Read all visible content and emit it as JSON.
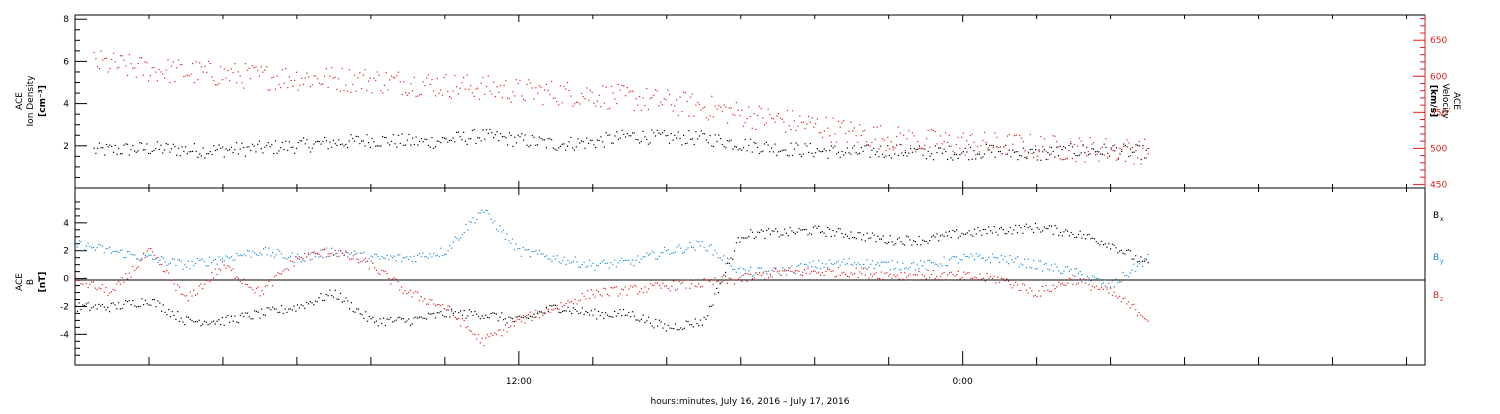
{
  "chart_data": [
    {
      "type": "scatter",
      "panel": "top",
      "ylabel_left": [
        "ACE",
        "Ion Density",
        "[cm⁻³]"
      ],
      "ylabel_right": [
        "ACE",
        "Velocity",
        "[km/s]"
      ],
      "ylim_left": [
        0,
        8.2
      ],
      "ylim_right": [
        445,
        685
      ],
      "yticks_left": [
        2,
        4,
        6,
        8
      ],
      "yticks_right": [
        450,
        500,
        550,
        600,
        650
      ],
      "series": [
        {
          "name": "",
          "axis": "left",
          "color": "#000000",
          "values_hr": [
            0.5,
            2,
            3.5,
            5,
            6.5,
            8,
            9.5,
            11,
            12,
            13,
            14,
            15,
            16,
            17,
            18,
            19,
            20,
            21,
            22,
            23,
            24,
            25,
            26,
            27,
            28,
            29
          ],
          "values": [
            1.8,
            1.9,
            1.8,
            1.9,
            2.1,
            2.3,
            2.2,
            2.5,
            2.3,
            2.1,
            2.2,
            2.5,
            2.4,
            2.4,
            2.1,
            1.9,
            1.8,
            1.7,
            1.8,
            1.7,
            1.7,
            1.8,
            1.6,
            1.8,
            1.8,
            1.7
          ]
        },
        {
          "name": "",
          "axis": "right",
          "color": "#e02020",
          "values_hr": [
            0.5,
            2,
            3.5,
            5,
            6.5,
            8,
            9.5,
            11,
            12,
            13,
            14,
            15,
            16,
            17,
            18,
            19,
            20,
            21,
            22,
            23,
            24,
            25,
            26,
            27,
            28,
            29
          ],
          "values": [
            620,
            610,
            605,
            600,
            598,
            595,
            590,
            585,
            580,
            578,
            575,
            570,
            565,
            558,
            548,
            540,
            532,
            522,
            515,
            510,
            508,
            505,
            503,
            500,
            499,
            496
          ]
        }
      ]
    },
    {
      "type": "scatter",
      "panel": "bottom",
      "ylabel": [
        "ACE",
        "B",
        "[nT]"
      ],
      "ylim": [
        -6.2,
        6.5
      ],
      "yticks": [
        -4,
        -2,
        0,
        2,
        4
      ],
      "legend": [
        "Bx",
        "By",
        "Bz"
      ],
      "series": [
        {
          "name": "Bx",
          "color": "#000000",
          "values_hr": [
            0,
            1,
            2,
            3,
            4,
            5,
            6,
            7,
            8,
            9,
            10,
            11,
            12,
            13,
            14,
            15,
            16,
            17,
            18,
            19,
            20,
            21,
            22,
            23,
            24,
            25,
            26,
            27,
            28,
            29
          ],
          "values": [
            -2,
            -2,
            -1.5,
            -3,
            -3,
            -2.5,
            -2,
            -1,
            -3,
            -3,
            -2.5,
            -2.5,
            -3,
            -2,
            -2.5,
            -2.5,
            -3.5,
            -3,
            3.2,
            3.3,
            3.5,
            3.2,
            2.8,
            2.8,
            3.3,
            3.5,
            3.7,
            3.3,
            2.5,
            1
          ]
        },
        {
          "name": "By",
          "color": "#1a8ad8",
          "values_hr": [
            0,
            1,
            2,
            3,
            4,
            5,
            6,
            7,
            8,
            9,
            10,
            11,
            12,
            13,
            14,
            15,
            16,
            17,
            18,
            19,
            20,
            21,
            22,
            23,
            24,
            25,
            26,
            27,
            28,
            29
          ],
          "values": [
            2.5,
            2,
            1.5,
            1,
            1.5,
            2,
            1.5,
            2,
            1.5,
            1.5,
            2,
            5,
            2,
            1.5,
            1,
            1.2,
            2,
            2.5,
            0.5,
            0.5,
            1,
            1.2,
            1,
            1,
            1.5,
            1.5,
            1,
            0.5,
            -0.5,
            1.5
          ]
        },
        {
          "name": "Bz",
          "color": "#e02020",
          "values_hr": [
            0,
            1,
            2,
            3,
            4,
            5,
            6,
            7,
            8,
            9,
            10,
            11,
            12,
            13,
            14,
            15,
            16,
            17,
            18,
            19,
            20,
            21,
            22,
            23,
            24,
            25,
            26,
            27,
            28,
            29
          ],
          "values": [
            0,
            -1,
            2,
            -1.5,
            1,
            -1,
            1.5,
            2,
            1,
            -1,
            -2,
            -4.5,
            -3,
            -2,
            -1,
            -0.8,
            -0.5,
            -0.3,
            0,
            0.5,
            0.5,
            0.5,
            0.3,
            0.3,
            0.2,
            0,
            -1,
            0,
            -1,
            -2.8
          ]
        }
      ]
    }
  ],
  "xaxis": {
    "label": "hours:minutes, July 16, 2016 – July 17, 2016",
    "ticks": [
      {
        "label": "12:00",
        "hour": 12
      },
      {
        "label": "0:00",
        "hour": 24
      }
    ],
    "range_hr": [
      0,
      36.5
    ],
    "minor_every_hr": 2
  },
  "legend_labels": {
    "bx_base": "B",
    "bx_sub": "x",
    "by_base": "B",
    "by_sub": "y",
    "bz_base": "B",
    "bz_sub": "z"
  },
  "ylabels_text": {
    "top_left_1": "ACE",
    "top_left_2": "Ion Density",
    "top_left_3": "[cm⁻³]",
    "top_right_1": "ACE",
    "top_right_2": "Velocity",
    "top_right_3": "[km/s]",
    "bot_left_1": "ACE",
    "bot_left_2": "B",
    "bot_left_3": "[nT]"
  }
}
